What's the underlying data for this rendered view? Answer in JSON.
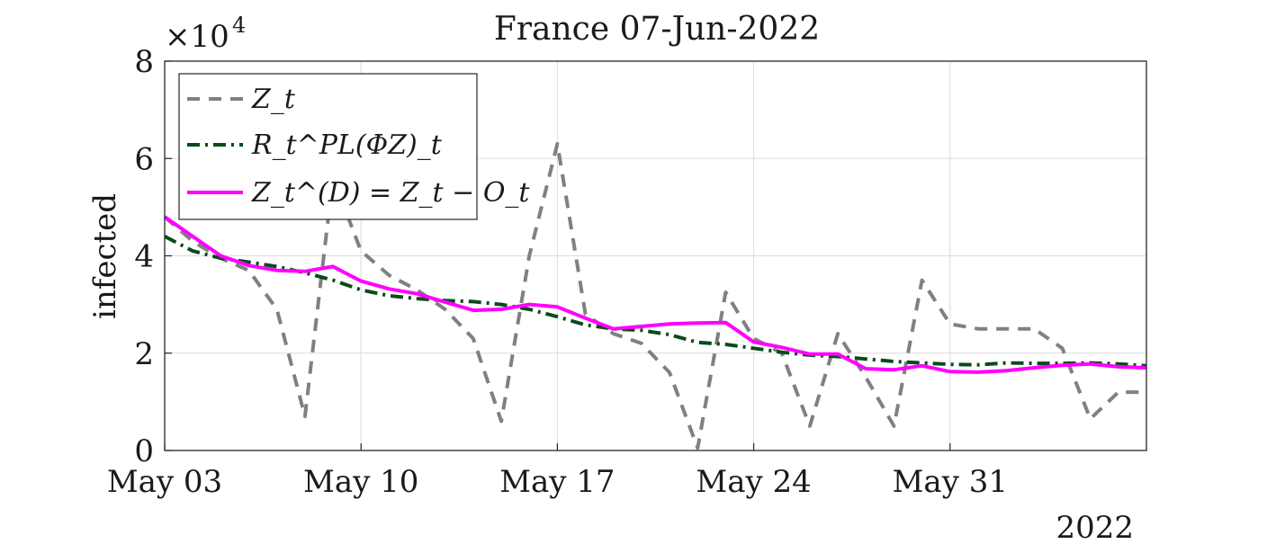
{
  "chart_data": {
    "type": "line",
    "title": "France 07-Jun-2022",
    "ylabel": "infected",
    "xlabel": "",
    "exponent_label": "×10",
    "exponent_power": "4",
    "year_label": "2022",
    "x_dates": [
      "2022-05-03",
      "2022-05-04",
      "2022-05-05",
      "2022-05-06",
      "2022-05-07",
      "2022-05-08",
      "2022-05-09",
      "2022-05-10",
      "2022-05-11",
      "2022-05-12",
      "2022-05-13",
      "2022-05-14",
      "2022-05-15",
      "2022-05-16",
      "2022-05-17",
      "2022-05-18",
      "2022-05-19",
      "2022-05-20",
      "2022-05-21",
      "2022-05-22",
      "2022-05-23",
      "2022-05-24",
      "2022-05-25",
      "2022-05-26",
      "2022-05-27",
      "2022-05-28",
      "2022-05-29",
      "2022-05-30",
      "2022-05-31",
      "2022-06-01",
      "2022-06-02",
      "2022-06-03",
      "2022-06-04",
      "2022-06-05",
      "2022-06-06",
      "2022-06-07"
    ],
    "x_ticks": [
      {
        "date": "2022-05-03",
        "label": "May 03"
      },
      {
        "date": "2022-05-10",
        "label": "May 10"
      },
      {
        "date": "2022-05-17",
        "label": "May 17"
      },
      {
        "date": "2022-05-24",
        "label": "May 24"
      },
      {
        "date": "2022-05-31",
        "label": "May 31"
      }
    ],
    "y_ticks": [
      {
        "value": 0,
        "label": "0"
      },
      {
        "value": 2,
        "label": "2"
      },
      {
        "value": 4,
        "label": "4"
      },
      {
        "value": 6,
        "label": "6"
      },
      {
        "value": 8,
        "label": "8"
      }
    ],
    "ylim": [
      0,
      8
    ],
    "xlim": [
      "2022-05-03",
      "2022-06-07"
    ],
    "y_units": "×10^4",
    "grid": true,
    "legend_position": "top-left",
    "series": [
      {
        "name": "Z_t",
        "color": "#808080",
        "dash": "dashed",
        "values": [
          4.8,
          4.3,
          3.95,
          3.7,
          2.9,
          0.7,
          5.6,
          4.1,
          3.6,
          3.3,
          2.9,
          2.3,
          0.6,
          4.0,
          6.3,
          2.8,
          2.4,
          2.2,
          1.6,
          0.05,
          3.25,
          2.3,
          2.0,
          0.5,
          2.4,
          1.5,
          0.5,
          3.5,
          2.6,
          2.5,
          2.5,
          2.5,
          2.1,
          0.65,
          1.2,
          1.2
        ]
      },
      {
        "name": "R_t^PL(ΦZ)_t",
        "color": "#0a4a1a",
        "dash": "dashdot",
        "values": [
          4.4,
          4.1,
          3.95,
          3.87,
          3.78,
          3.65,
          3.5,
          3.3,
          3.18,
          3.12,
          3.08,
          3.06,
          3.0,
          2.9,
          2.75,
          2.58,
          2.5,
          2.47,
          2.38,
          2.22,
          2.18,
          2.1,
          2.02,
          1.96,
          1.93,
          1.88,
          1.83,
          1.8,
          1.77,
          1.76,
          1.8,
          1.79,
          1.79,
          1.8,
          1.78,
          1.74
        ]
      },
      {
        "name": "Z_t^(D) = Z_t − O_t",
        "color": "#ff00ff",
        "dash": "solid",
        "values": [
          4.8,
          4.4,
          4.0,
          3.8,
          3.7,
          3.68,
          3.78,
          3.48,
          3.32,
          3.22,
          3.05,
          2.88,
          2.9,
          3.0,
          2.95,
          2.72,
          2.5,
          2.55,
          2.6,
          2.62,
          2.63,
          2.23,
          2.12,
          1.98,
          1.98,
          1.68,
          1.66,
          1.74,
          1.62,
          1.61,
          1.64,
          1.7,
          1.75,
          1.78,
          1.72,
          1.7
        ]
      }
    ]
  }
}
